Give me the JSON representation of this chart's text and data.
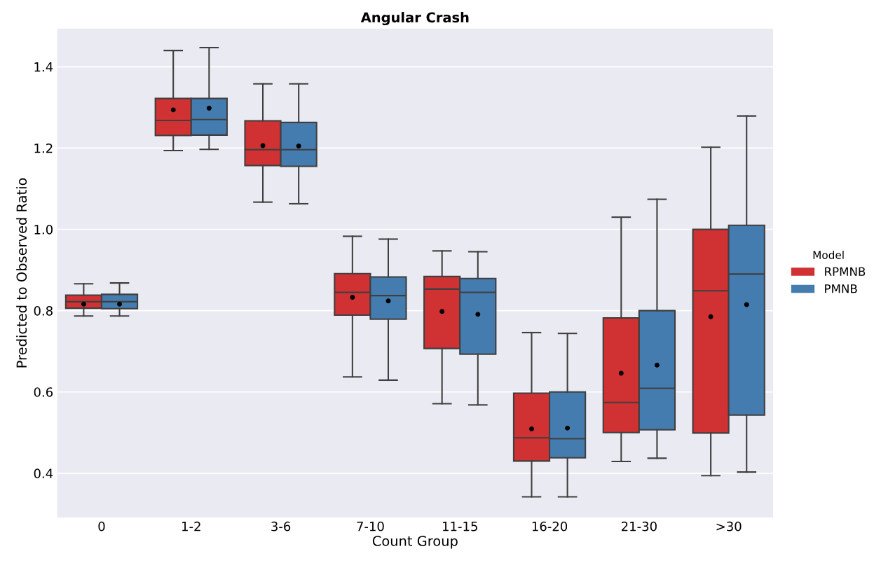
{
  "chart_data": {
    "type": "box",
    "title": "Angular Crash",
    "xlabel": "Count Group",
    "ylabel": "Predicted to Observed Ratio",
    "legend_title": "Model",
    "legend": "right",
    "grid": "y",
    "categories": [
      "0",
      "1-2",
      "3-6",
      "7-10",
      "11-15",
      "16-20",
      "21-30",
      ">30"
    ],
    "ylim": [
      0.29,
      1.495
    ],
    "yticks": [
      0.4,
      0.6,
      0.8,
      {
        "value": 1,
        "label": "1.0"
      },
      1.2,
      1.4
    ],
    "series": [
      {
        "name": "RPMNB",
        "color": "#d03133",
        "boxes": [
          {
            "low": 0.787,
            "q1": 0.806,
            "median": 0.822,
            "q3": 0.838,
            "high": 0.866,
            "mean": 0.816
          },
          {
            "low": 1.194,
            "q1": 1.231,
            "median": 1.268,
            "q3": 1.322,
            "high": 1.44,
            "mean": 1.294
          },
          {
            "low": 1.067,
            "q1": 1.157,
            "median": 1.196,
            "q3": 1.267,
            "high": 1.358,
            "mean": 1.206
          },
          {
            "low": 0.637,
            "q1": 0.789,
            "median": 0.845,
            "q3": 0.891,
            "high": 0.983,
            "mean": 0.833
          },
          {
            "low": 0.571,
            "q1": 0.707,
            "median": 0.853,
            "q3": 0.884,
            "high": 0.947,
            "mean": 0.798
          },
          {
            "low": 0.342,
            "q1": 0.43,
            "median": 0.487,
            "q3": 0.597,
            "high": 0.746,
            "mean": 0.509
          },
          {
            "low": 0.429,
            "q1": 0.5,
            "median": 0.574,
            "q3": 0.782,
            "high": 1.03,
            "mean": 0.646
          },
          {
            "low": 0.394,
            "q1": 0.499,
            "median": 0.849,
            "q3": 1.0,
            "high": 1.202,
            "mean": 0.785
          }
        ]
      },
      {
        "name": "PMNB",
        "color": "#457cb0",
        "boxes": [
          {
            "low": 0.787,
            "q1": 0.805,
            "median": 0.822,
            "q3": 0.84,
            "high": 0.868,
            "mean": 0.816
          },
          {
            "low": 1.197,
            "q1": 1.232,
            "median": 1.27,
            "q3": 1.322,
            "high": 1.447,
            "mean": 1.298
          },
          {
            "low": 1.063,
            "q1": 1.155,
            "median": 1.196,
            "q3": 1.263,
            "high": 1.358,
            "mean": 1.205
          },
          {
            "low": 0.629,
            "q1": 0.779,
            "median": 0.837,
            "q3": 0.883,
            "high": 0.976,
            "mean": 0.824
          },
          {
            "low": 0.568,
            "q1": 0.693,
            "median": 0.845,
            "q3": 0.879,
            "high": 0.945,
            "mean": 0.791
          },
          {
            "low": 0.342,
            "q1": 0.438,
            "median": 0.485,
            "q3": 0.6,
            "high": 0.744,
            "mean": 0.511
          },
          {
            "low": 0.437,
            "q1": 0.507,
            "median": 0.609,
            "q3": 0.8,
            "high": 1.074,
            "mean": 0.666
          },
          {
            "low": 0.403,
            "q1": 0.543,
            "median": 0.89,
            "q3": 1.01,
            "high": 1.279,
            "mean": 0.815
          }
        ]
      }
    ]
  }
}
